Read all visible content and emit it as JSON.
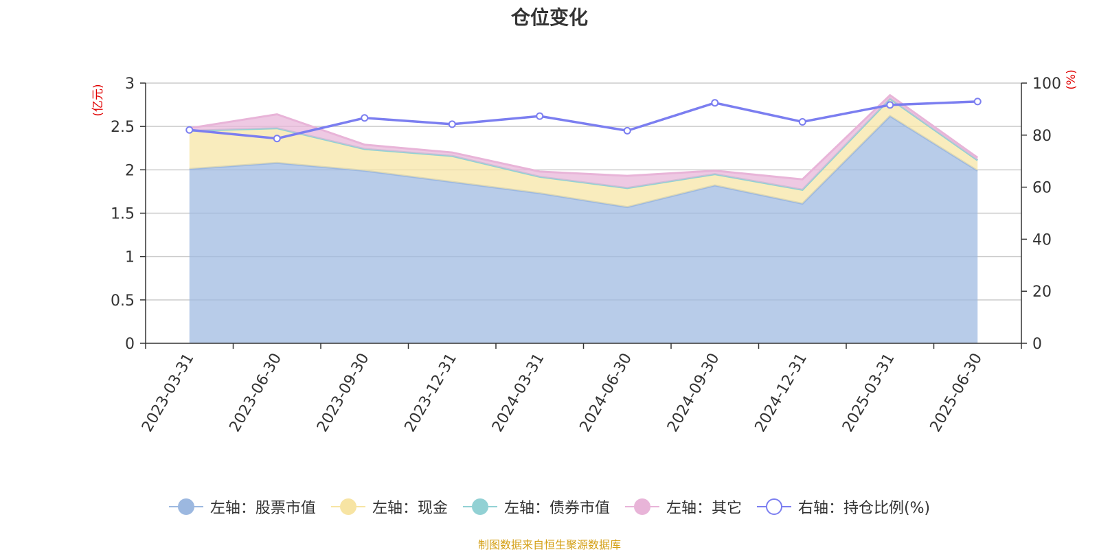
{
  "chart_data": {
    "type": "area",
    "title": "仓位变化",
    "x": [
      "2023-03-31",
      "2023-06-30",
      "2023-09-30",
      "2023-12-31",
      "2024-03-31",
      "2024-06-30",
      "2024-09-30",
      "2024-12-31",
      "2025-03-31",
      "2025-06-30"
    ],
    "left_axis": {
      "unit": "(亿元)",
      "ylim": [
        0,
        3
      ],
      "ticks": [
        "0",
        "0.5",
        "1",
        "1.5",
        "2",
        "2.5",
        "3"
      ]
    },
    "right_axis": {
      "unit": "(%)",
      "ylim": [
        0,
        100
      ],
      "ticks": [
        "0",
        "20",
        "40",
        "60",
        "80",
        "100"
      ]
    },
    "series": [
      {
        "name": "左轴：股票市值",
        "axis": "left",
        "color": "#9cb8e0",
        "values": [
          2.01,
          2.08,
          1.99,
          1.86,
          1.73,
          1.57,
          1.82,
          1.61,
          2.62,
          1.99
        ]
      },
      {
        "name": "左轴：现金",
        "axis": "left",
        "color": "#f7e4a3",
        "values": [
          0.44,
          0.4,
          0.25,
          0.3,
          0.19,
          0.22,
          0.13,
          0.16,
          0.2,
          0.12
        ]
      },
      {
        "name": "左轴：债券市值",
        "axis": "left",
        "color": "#92d1d4",
        "values": [
          0,
          0,
          0,
          0,
          0,
          0,
          0,
          0,
          0,
          0
        ]
      },
      {
        "name": "左轴：其它",
        "axis": "left",
        "color": "#e8b4d8",
        "values": [
          0.03,
          0.16,
          0.05,
          0.04,
          0.06,
          0.14,
          0.04,
          0.12,
          0.04,
          0.03
        ]
      },
      {
        "name": "右轴：持仓比例(%)",
        "axis": "right",
        "color": "#7b7ef0",
        "values": [
          82.0,
          78.7,
          86.6,
          84.2,
          87.3,
          81.7,
          92.4,
          85.1,
          91.6,
          92.9
        ]
      }
    ],
    "grid": true,
    "legend_position": "bottom"
  },
  "footer": {
    "source": "制图数据来自恒生聚源数据库"
  }
}
